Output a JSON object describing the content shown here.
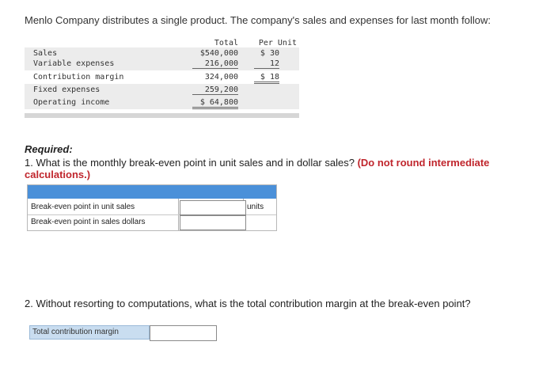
{
  "intro": "Menlo Company distributes a single product. The company's sales and expenses for last month follow:",
  "statement": {
    "header_total": "Total",
    "header_unit": "Per Unit",
    "rows": [
      {
        "label": "Sales",
        "total": "$540,000",
        "unit": "$ 30"
      },
      {
        "label": "Variable expenses",
        "total": "216,000",
        "unit": "12"
      },
      {
        "label": "Contribution margin",
        "total": "324,000",
        "unit": "$ 18"
      },
      {
        "label": "Fixed expenses",
        "total": "259,200",
        "unit": ""
      },
      {
        "label": "Operating income",
        "total": "$ 64,800",
        "unit": ""
      }
    ]
  },
  "required": "Required:",
  "q1": {
    "text": "1. What is the monthly break-even point in unit sales and in dollar sales?",
    "note": "(Do not round intermediate calculations.)"
  },
  "answer_table": {
    "rows": [
      {
        "label": "Break-even point in unit sales",
        "value": "",
        "unit": "units"
      },
      {
        "label": "Break-even point in sales dollars",
        "value": "",
        "unit": ""
      }
    ]
  },
  "q2": "2. Without resorting to computations, what is the total contribution margin at the break-even point?",
  "tcm": {
    "label": "Total contribution margin",
    "value": ""
  }
}
